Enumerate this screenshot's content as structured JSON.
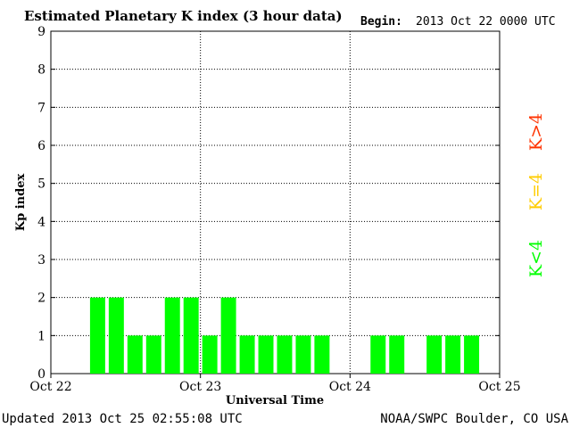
{
  "header": {
    "title": "Estimated Planetary K index (3 hour data)",
    "begin_label": "Begin:",
    "begin_value": "2013 Oct 22 0000 UTC"
  },
  "footer": {
    "updated": "Updated 2013 Oct 25 02:55:08 UTC",
    "source": "NOAA/SWPC Boulder, CO USA"
  },
  "legend": {
    "high": "K>4",
    "mid": "K=4",
    "low": "K<4"
  },
  "colors": {
    "low": "#00ff00",
    "mid": "#ffcc00",
    "high": "#ff3300",
    "bar": "#00ff00"
  },
  "chart_data": {
    "type": "bar",
    "title": "Estimated Planetary K index (3 hour data)",
    "xlabel": "Universal Time",
    "ylabel": "Kp index",
    "ylim": [
      0,
      9
    ],
    "yticks": [
      0,
      1,
      2,
      3,
      4,
      5,
      6,
      7,
      8,
      9
    ],
    "x_ticks": [
      "Oct 22",
      "Oct 23",
      "Oct 24",
      "Oct 25"
    ],
    "grid": true,
    "values": [
      null,
      null,
      2,
      2,
      1,
      1,
      2,
      2,
      1,
      2,
      1,
      1,
      1,
      1,
      1,
      null,
      null,
      1,
      1,
      null,
      1,
      1,
      1,
      null
    ]
  }
}
